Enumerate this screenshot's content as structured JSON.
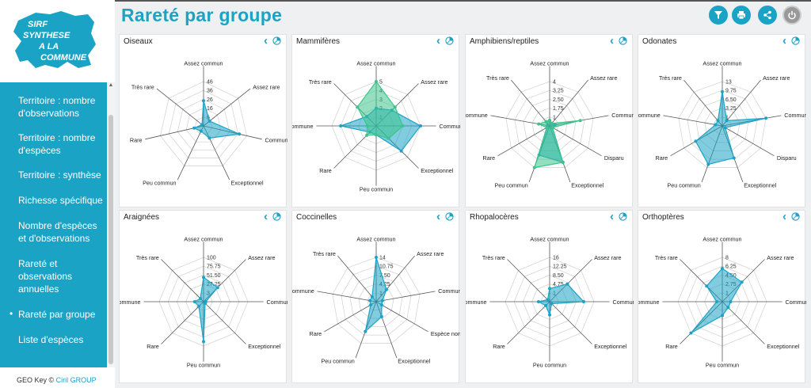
{
  "logo": {
    "line1": "SIRF",
    "line2": "SYNTHESE",
    "line3": "A LA",
    "line4": "COMMUNE"
  },
  "nav": [
    {
      "label": "Territoire : nombre d'observations",
      "active": false
    },
    {
      "label": "Territoire : nombre d'espèces",
      "active": false
    },
    {
      "label": "Territoire : synthèse",
      "active": false
    },
    {
      "label": "Richesse spécifique",
      "active": false
    },
    {
      "label": "Nombre d'espèces et d'observations",
      "active": false
    },
    {
      "label": "Rareté et observations annuelles",
      "active": false
    },
    {
      "label": "Rareté par groupe",
      "active": true
    },
    {
      "label": "Liste d'espèces",
      "active": false
    }
  ],
  "footer": {
    "text": "GEO Key ©",
    "link": "Ciril GROUP"
  },
  "header": {
    "title": "Rareté par groupe",
    "buttons": [
      "filter-icon",
      "print-icon",
      "share-icon",
      "power-icon"
    ]
  },
  "colors": {
    "accent": "#1ba3c6",
    "series2": "#3cc48c"
  },
  "chart_data": [
    {
      "type": "radar",
      "title": "Oiseaux",
      "axes": [
        "Assez commun",
        "Assez rare",
        "Commun",
        "Exceptionnel",
        "Peu commun",
        "Rare",
        "Très rare"
      ],
      "ticks": [
        "46",
        "36",
        "26",
        "16",
        "6"
      ],
      "max": 46,
      "series": [
        {
          "values": [
            26,
            8,
            38,
            14,
            6,
            10,
            2
          ]
        }
      ]
    },
    {
      "type": "radar",
      "title": "Mammifères",
      "axes": [
        "Assez commun",
        "Assez rare",
        "Commun",
        "Exceptionnel",
        "Peu commun",
        "Rare",
        "Très commune",
        "Très rare"
      ],
      "ticks": [
        "5",
        "4",
        "3",
        "2",
        "1"
      ],
      "max": 5,
      "series": [
        {
          "values": [
            2,
            2.5,
            5,
            4,
            1,
            1,
            4,
            1.5
          ]
        },
        {
          "values": [
            5,
            3,
            3,
            2,
            1,
            1.5,
            1,
            3
          ]
        }
      ]
    },
    {
      "type": "radar",
      "title": "Amphibiens/reptiles",
      "axes": [
        "Assez commun",
        "Assez rare",
        "Commun",
        "Disparu",
        "Exceptionnel",
        "Peu commun",
        "Rare",
        "Très commune",
        "Très rare"
      ],
      "ticks": [
        "4",
        "3.25",
        "2.50",
        "1.75",
        "1"
      ],
      "max": 4,
      "series": [
        {
          "values": [
            0.5,
            0.3,
            0.5,
            0.3,
            3.5,
            2.8,
            0.3,
            0.2,
            0.5
          ]
        },
        {
          "values": [
            0.5,
            0.3,
            2.8,
            0.3,
            3.5,
            4,
            0.3,
            1,
            0.5
          ]
        }
      ]
    },
    {
      "type": "radar",
      "title": "Odonates",
      "axes": [
        "Assez commun",
        "Assez rare",
        "Commun",
        "Disparu",
        "Exceptionnel",
        "Peu commun",
        "Rare",
        "Très commune",
        "Très rare"
      ],
      "ticks": [
        "13",
        "9.75",
        "6.50",
        "3.25",
        "1"
      ],
      "max": 13,
      "series": [
        {
          "values": [
            10,
            2,
            13,
            1,
            10,
            12,
            9,
            2,
            2
          ]
        }
      ]
    },
    {
      "type": "radar",
      "title": "Araignées",
      "axes": [
        "Assez commun",
        "Assez rare",
        "Commun",
        "Exceptionnel",
        "Peu commun",
        "Rare",
        "Très commune",
        "Très rare"
      ],
      "ticks": [
        "100",
        "75.75",
        "51.50",
        "27.25",
        "3"
      ],
      "max": 100,
      "series": [
        {
          "values": [
            55,
            45,
            5,
            5,
            90,
            15,
            20,
            10
          ]
        }
      ]
    },
    {
      "type": "radar",
      "title": "Coccinelles",
      "axes": [
        "Assez commun",
        "Assez rare",
        "Commun",
        "Espèce non r...",
        "Exceptionnel",
        "Peu commun",
        "Rare",
        "Très commune",
        "Très rare"
      ],
      "ticks": [
        "14",
        "10.75",
        "7.50",
        "4.25",
        "1"
      ],
      "max": 14,
      "series": [
        {
          "values": [
            14,
            5,
            2,
            2,
            5,
            10,
            2,
            2,
            2
          ]
        }
      ]
    },
    {
      "type": "radar",
      "title": "Rhopalocères",
      "axes": [
        "Assez commun",
        "Assez rare",
        "Commun",
        "Exceptionnel",
        "Peu commun",
        "Rare",
        "Très commune",
        "Très rare"
      ],
      "ticks": [
        "16",
        "12.25",
        "8.50",
        "4.75",
        "1"
      ],
      "max": 16,
      "series": [
        {
          "values": [
            4.75,
            9,
            12.25,
            1,
            4.75,
            2,
            4,
            1
          ]
        }
      ]
    },
    {
      "type": "radar",
      "title": "Orthoptères",
      "axes": [
        "Assez commun",
        "Assez rare",
        "Commun",
        "Exceptionnel",
        "Peu commun",
        "Rare",
        "Très commune",
        "Très rare"
      ],
      "ticks": [
        "8",
        "6.25",
        "4.50",
        "2.75",
        "1"
      ],
      "max": 8,
      "series": [
        {
          "values": [
            6,
            5,
            1.5,
            1.5,
            2.5,
            8,
            1,
            4
          ]
        }
      ]
    }
  ]
}
